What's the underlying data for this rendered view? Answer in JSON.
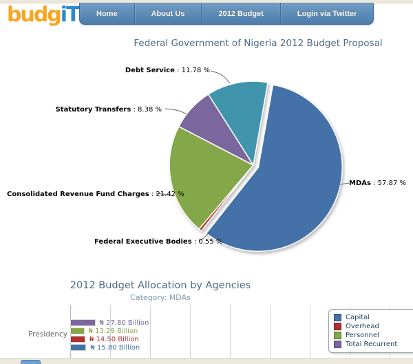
{
  "brand": {
    "name_left": "budg",
    "name_right": "iT"
  },
  "nav": {
    "items": [
      {
        "label": "Home"
      },
      {
        "label": "About Us"
      },
      {
        "label": "2012 Budget"
      },
      {
        "label": "Login via Twitter"
      }
    ]
  },
  "theme": {
    "nav_blue": "#5b8ab8",
    "page_strip_beige": "#ebe7da",
    "heading_color": "#4e6a84",
    "logo_orange": "#f6a623",
    "logo_blue": "#2d88c9"
  },
  "chart_data": [
    {
      "type": "pie",
      "title": "Federal Government of Nigeria 2012 Budget Proposal",
      "start_angle_deg": 10,
      "legend_position": "none",
      "slices": [
        {
          "label": "MDAs",
          "value_pct": 57.87,
          "display": " : 57.87 %",
          "color": "#4472a8",
          "exploded": true
        },
        {
          "label": "Federal Executive Bodies",
          "value_pct": 0.55,
          "display": " : 0.55 %",
          "color": "#b0302f",
          "exploded": false
        },
        {
          "label": "Consolidated Revenue Fund Charges",
          "value_pct": 21.42,
          "display": " : 21.42 %",
          "color": "#84a74a",
          "exploded": false
        },
        {
          "label": "Statutory Transfers",
          "value_pct": 8.38,
          "display": " : 8.38 %",
          "color": "#7b679e",
          "exploded": false
        },
        {
          "label": "Debt Service",
          "value_pct": 11.78,
          "display": " : 11.78 %",
          "color": "#4095ac",
          "exploded": false
        }
      ]
    },
    {
      "type": "bar",
      "orientation": "horizontal",
      "title": "2012 Budget Allocation by Agencies",
      "subtitle": "Category: MDAs",
      "categories": [
        "Presidency"
      ],
      "unit": "₦ Billion",
      "grid": true,
      "series": [
        {
          "name": "Total Recurrent",
          "color": "#7b679e",
          "values": [
            27.8
          ],
          "value_labels": [
            "₦ 27.80 Billion"
          ]
        },
        {
          "name": "Personnel",
          "color": "#84a74a",
          "values": [
            13.29
          ],
          "value_labels": [
            "₦ 13.29 Billion"
          ]
        },
        {
          "name": "Overhead",
          "color": "#b0302f",
          "values": [
            14.5
          ],
          "value_labels": [
            "₦ 14.50 Billion"
          ]
        },
        {
          "name": "Capital",
          "color": "#4472a8",
          "values": [
            15.8
          ],
          "value_labels": [
            "₦ 15.80 Billion"
          ]
        }
      ],
      "legend": {
        "position": "top-right",
        "items": [
          {
            "label": "Capital",
            "color": "#4472a8"
          },
          {
            "label": "Overhead",
            "color": "#b0302f"
          },
          {
            "label": "Personnel",
            "color": "#84a74a"
          },
          {
            "label": "Total Recurrent",
            "color": "#7b679e"
          }
        ]
      }
    }
  ]
}
